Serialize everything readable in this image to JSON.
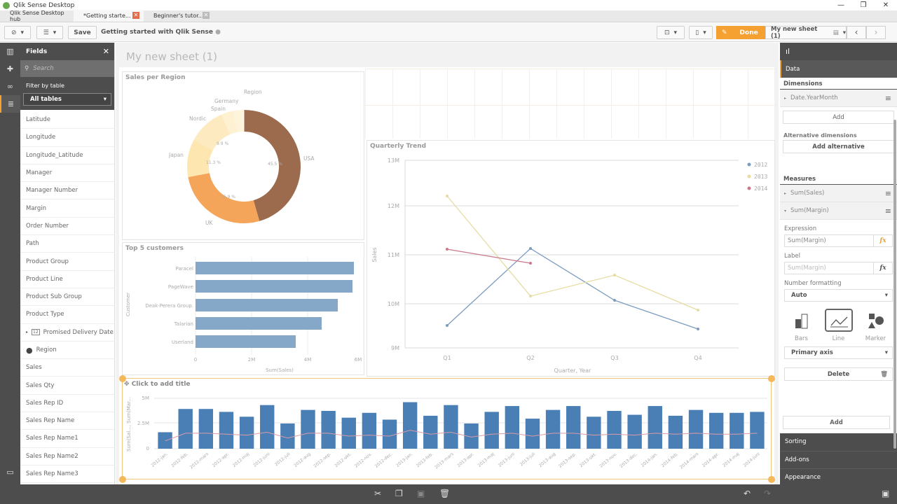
{
  "window": {
    "title": "Qlik Sense Desktop",
    "controls": [
      "—",
      "❐",
      "✕"
    ]
  },
  "tabs": [
    {
      "label": "Qlik Sense Desktop hub",
      "active": false
    },
    {
      "label": "*Getting starte...",
      "active": true
    },
    {
      "label": "Beginner's tutor...",
      "active": false
    }
  ],
  "toolbar": {
    "save_label": "Save",
    "app_title": "Getting started with Qlik Sense",
    "done_label": "Done",
    "sheet_name": "My new sheet (1)",
    "prev": "‹",
    "next": "›"
  },
  "fields_panel": {
    "title": "Fields",
    "search_placeholder": "Search",
    "filter_label": "Filter by table",
    "filter_value": "All tables",
    "items": [
      "Latitude",
      "Longitude",
      "Longitude_Latitude",
      "Manager",
      "Manager Number",
      "Margin",
      "Order Number",
      "Path",
      "Product Group",
      "Product Line",
      "Product Sub Group",
      "Product Type",
      "Promised Delivery Date",
      "Region",
      "Sales",
      "Sales Qty",
      "Sales Rep ID",
      "Sales Rep Name",
      "Sales Rep Name1",
      "Sales Rep Name2",
      "Sales Rep Name3"
    ]
  },
  "sheet": {
    "title": "My new sheet (1)"
  },
  "chart_data": [
    {
      "type": "pie",
      "title": "Sales per Region",
      "legend_title": "Region",
      "categories": [
        "USA",
        "UK",
        "Japan",
        "Nordic",
        "Spain",
        "Germany"
      ],
      "values": [
        45.5,
        26.9,
        11.3,
        9.9,
        3.4,
        3.0
      ],
      "labels": [
        "45.5 %",
        "26.9 %",
        "11.3 %",
        "9.9 %",
        "",
        ""
      ],
      "colors": [
        "#9c6b4e",
        "#f5a55a",
        "#fde7b0",
        "#fdedc3",
        "#fef3d6",
        "#fef6e2"
      ]
    },
    {
      "type": "bar",
      "orientation": "horizontal",
      "title": "Top 5 customers",
      "categories": [
        "Paracel",
        "PageWave",
        "Deak-Perera Group.",
        "Talarian",
        "Userland"
      ],
      "values": [
        5.7,
        5.65,
        5.1,
        4.5,
        3.6
      ],
      "xlabel": "Sum(Sales)",
      "ylabel": "Customer",
      "xticks": [
        "0",
        "2M",
        "4M",
        "6M"
      ],
      "xlim": [
        0,
        6
      ]
    },
    {
      "type": "line",
      "title": "Quarterly Trend",
      "categories": [
        "Q1",
        "Q2",
        "Q3",
        "Q4"
      ],
      "series": [
        {
          "name": "2012",
          "color": "#7c9cbf",
          "values": [
            9.55,
            11.13,
            10.07,
            9.47
          ]
        },
        {
          "name": "2013",
          "color": "#e6dca2",
          "values": [
            12.2,
            10.15,
            10.58,
            9.87
          ]
        },
        {
          "name": "2014",
          "color": "#c9798a",
          "values": [
            11.12,
            10.83,
            null,
            null
          ]
        }
      ],
      "xlabel": "Quarter, Year",
      "ylabel": "Sales",
      "yticks": [
        "9M",
        "10M",
        "11M",
        "12M",
        "13M"
      ],
      "ylim": [
        9,
        13
      ]
    },
    {
      "type": "bar",
      "title": "Click to add title",
      "ylabel": "Sum(Sal..., Sum(Mar...",
      "yticks": [
        "0",
        "2.5M",
        "5M"
      ],
      "ylim": [
        0,
        5.2
      ],
      "categories": [
        "2012-jan.",
        "2012-feb.",
        "2012-mars",
        "2012-apr.",
        "2012-maj",
        "2012-juni",
        "2012-juli",
        "2012-aug",
        "2012-sep.",
        "2012-okt.",
        "2012-nov.",
        "2012-dec.",
        "2013-jan.",
        "2013-feb.",
        "2013-mars",
        "2013-apr.",
        "2013-maj",
        "2013-juni",
        "2013-juli",
        "2013-aug",
        "2013-sep.",
        "2013-okt.",
        "2013-nov.",
        "2013-dec.",
        "2014-jan.",
        "2014-feb.",
        "2014-mars",
        "2014-apr.",
        "2014-maj",
        "2014-juni"
      ],
      "series": [
        {
          "name": "Sum(Sales)",
          "color": "#4a7fb5",
          "values": [
            1.7,
            4.1,
            4.1,
            3.8,
            3.3,
            4.5,
            2.6,
            4.0,
            3.9,
            3.2,
            3.7,
            3.0,
            4.8,
            3.4,
            4.5,
            2.6,
            3.8,
            4.4,
            3.1,
            4.0,
            4.4,
            3.3,
            3.9,
            3.5,
            4.4,
            3.4,
            4.0,
            3.7,
            3.7,
            3.8
          ]
        },
        {
          "name": "Sum(Margin)",
          "color": "#d99aa8",
          "values": [
            0.8,
            1.6,
            1.6,
            1.5,
            1.4,
            1.7,
            1.1,
            1.6,
            1.6,
            1.3,
            1.4,
            1.3,
            1.9,
            1.5,
            1.7,
            1.2,
            1.5,
            1.6,
            1.3,
            1.6,
            1.6,
            1.4,
            1.5,
            1.4,
            1.6,
            1.5,
            1.6,
            1.5,
            1.5,
            1.6
          ]
        }
      ]
    }
  ],
  "properties": {
    "tab_data": "Data",
    "dimensions_title": "Dimensions",
    "dimension": "Date.YearMonth",
    "add": "Add",
    "alt_dims_title": "Alternative dimensions",
    "add_alternative": "Add alternative",
    "measures_title": "Measures",
    "measures": [
      "Sum(Sales)",
      "Sum(Margin)"
    ],
    "expression_label": "Expression",
    "expression_value": "Sum(Margin)",
    "label_label": "Label",
    "label_placeholder": "Sum(Margin)",
    "number_formatting_label": "Number formatting",
    "number_formatting_value": "Auto",
    "types": [
      "Bars",
      "Line",
      "Marker"
    ],
    "axis_value": "Primary axis",
    "delete": "Delete",
    "add_measure": "Add",
    "sections": [
      "Sorting",
      "Add-ons",
      "Appearance"
    ],
    "fx": "fx"
  }
}
